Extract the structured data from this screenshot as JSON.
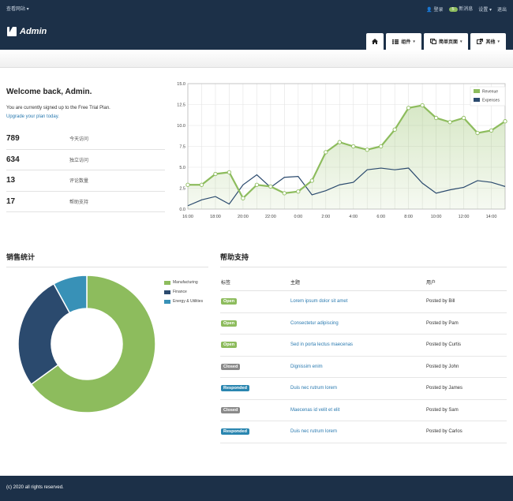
{
  "topbar": {
    "site_link": "查看网站",
    "login": "登录",
    "messages_count": "5",
    "messages": "新消息",
    "settings": "设置",
    "logout": "退出"
  },
  "brand": "Admin",
  "nav": {
    "components": "组件",
    "simple_pages": "简单页面",
    "other": "其他"
  },
  "welcome": {
    "title": "Welcome back, Admin.",
    "plan_text": "You are currently signed up to the Free Trial Plan.",
    "upgrade_link": "Upgrade your plan today."
  },
  "stats": [
    {
      "value": "789",
      "label": "今天访问"
    },
    {
      "value": "634",
      "label": "独立访问"
    },
    {
      "value": "13",
      "label": "评论数量"
    },
    {
      "value": "17",
      "label": "帮助支持"
    }
  ],
  "chart_data": [
    {
      "type": "line",
      "x": [
        "16:00",
        "17:00",
        "18:00",
        "19:00",
        "20:00",
        "21:00",
        "22:00",
        "23:00",
        "0:00",
        "1:00",
        "2:00",
        "3:00",
        "4:00",
        "5:00",
        "6:00",
        "7:00",
        "8:00",
        "9:00",
        "10:00",
        "11:00",
        "12:00",
        "13:00",
        "14:00",
        "15:00"
      ],
      "x_tick_labels": [
        "16:00",
        "18:00",
        "20:00",
        "22:00",
        "0:00",
        "2:00",
        "4:00",
        "6:00",
        "8:00",
        "10:00",
        "12:00",
        "14:00"
      ],
      "series": [
        {
          "name": "Revenue",
          "color": "#8dbc5d",
          "values": [
            2.9,
            2.9,
            4.2,
            4.4,
            1.3,
            2.9,
            2.7,
            1.9,
            2.1,
            3.4,
            6.8,
            8.0,
            7.5,
            7.1,
            7.5,
            9.5,
            12.1,
            12.4,
            10.9,
            10.4,
            10.9,
            9.1,
            9.4,
            10.5
          ]
        },
        {
          "name": "Expenses",
          "color": "#2b4a6e",
          "values": [
            0.4,
            1.1,
            1.5,
            0.6,
            2.9,
            4.1,
            2.6,
            3.8,
            3.9,
            1.7,
            2.2,
            2.9,
            3.2,
            4.7,
            4.9,
            4.7,
            4.9,
            3.1,
            1.9,
            2.3,
            2.6,
            3.4,
            3.2,
            2.7
          ]
        }
      ],
      "ylim": [
        0,
        15
      ],
      "y_ticks": [
        "0.0",
        "2.5",
        "5.0",
        "7.5",
        "10.0",
        "12.5",
        "15.0"
      ],
      "legend": "top-right",
      "grid": true
    },
    {
      "type": "pie",
      "title": "销售统计",
      "categories": [
        "Manufacturing",
        "Finance",
        "Energy & Utilities"
      ],
      "values": [
        65,
        27,
        8
      ],
      "colors": [
        "#8dbc5d",
        "#2b4a6e",
        "#3891b7"
      ]
    }
  ],
  "support": {
    "title": "帮助支持",
    "headers": [
      "标签",
      "主题",
      "用户"
    ],
    "rows": [
      {
        "status": "Open",
        "color": "#8dbc5d",
        "subject": "Lorem ipsum dolor sit amet",
        "user": "Posted by Bill"
      },
      {
        "status": "Open",
        "color": "#8dbc5d",
        "subject": "Consectetur adipiscing",
        "user": "Posted by Pam"
      },
      {
        "status": "Open",
        "color": "#8dbc5d",
        "subject": "Sed in porta lectus maecenas",
        "user": "Posted by Curtis"
      },
      {
        "status": "Closed",
        "color": "#8a8a8a",
        "subject": "Dignissim enim",
        "user": "Posted by John"
      },
      {
        "status": "Responded",
        "color": "#2a86b0",
        "subject": "Duis nec rutrum lorem",
        "user": "Posted by James"
      },
      {
        "status": "Closed",
        "color": "#8a8a8a",
        "subject": "Maecenas id velit et elit",
        "user": "Posted by Sam"
      },
      {
        "status": "Responded",
        "color": "#2a86b0",
        "subject": "Duis nec rutrum lorem",
        "user": "Posted by Carlos"
      }
    ]
  },
  "footer": "(c) 2020 all rights reserved."
}
